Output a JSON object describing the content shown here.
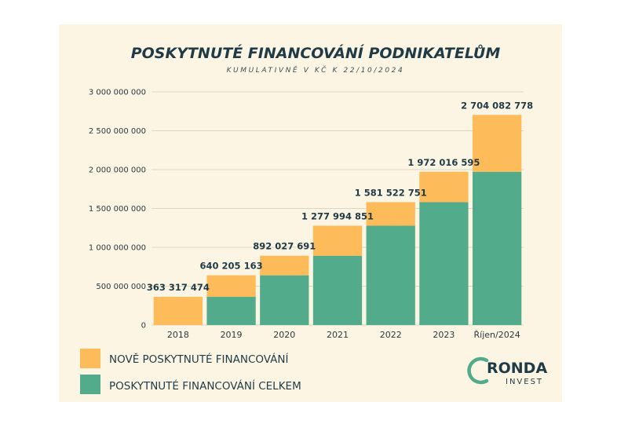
{
  "colors": {
    "new_financing": "#fdbb5a",
    "total_financing": "#52ac8c",
    "grid": "#dcd6c6",
    "background": "#fdf5e3",
    "text": "#1f3b47"
  },
  "chart_data": {
    "type": "bar",
    "stacked": true,
    "title": "POSKYTNUTÉ FINANCOVÁNÍ PODNIKATELŮM",
    "subtitle": "KUMULATIVNĚ V KČ K 22/10/2024",
    "categories": [
      "2018",
      "2019",
      "2020",
      "2021",
      "2022",
      "2023",
      "Říjen/2024"
    ],
    "series": [
      {
        "name": "POSKYTNUTÉ FINANCOVÁNÍ CELKEM",
        "values": [
          0,
          363317474,
          640205163,
          892027691,
          1277994851,
          1581522751,
          1972016595
        ],
        "color": "#52ac8c"
      },
      {
        "name": "NOVĚ POSKYTNUTÉ FINANCOVÁNÍ",
        "values": [
          363317474,
          276887689,
          251822528,
          385967160,
          303527900,
          390493844,
          732066183
        ],
        "color": "#fdbb5a"
      }
    ],
    "totals": [
      363317474,
      640205163,
      892027691,
      1277994851,
      1581522751,
      1972016595,
      2704082778
    ],
    "total_labels": [
      "363 317 474",
      "640 205 163",
      "892 027 691",
      "1 277 994 851",
      "1 581 522 751",
      "1 972 016 595",
      "2 704 082 778"
    ],
    "ylim": [
      0,
      3000000000
    ],
    "yticks": [
      0,
      500000000,
      1000000000,
      1500000000,
      2000000000,
      2500000000,
      3000000000
    ],
    "ytick_labels": [
      "0",
      "500 000 000",
      "1 000 000 000",
      "1 500 000 000",
      "2 000 000 000",
      "2 500 000 000",
      "3 000 000 000"
    ],
    "grid": true,
    "legend_position": "bottom-left"
  },
  "legend": [
    {
      "label": "NOVĚ POSKYTNUTÉ FINANCOVÁNÍ",
      "color": "#fdbb5a"
    },
    {
      "label": "POSKYTNUTÉ FINANCOVÁNÍ CELKEM",
      "color": "#52ac8c"
    }
  ],
  "logo": {
    "name": "RONDA",
    "sub": "INVEST"
  }
}
